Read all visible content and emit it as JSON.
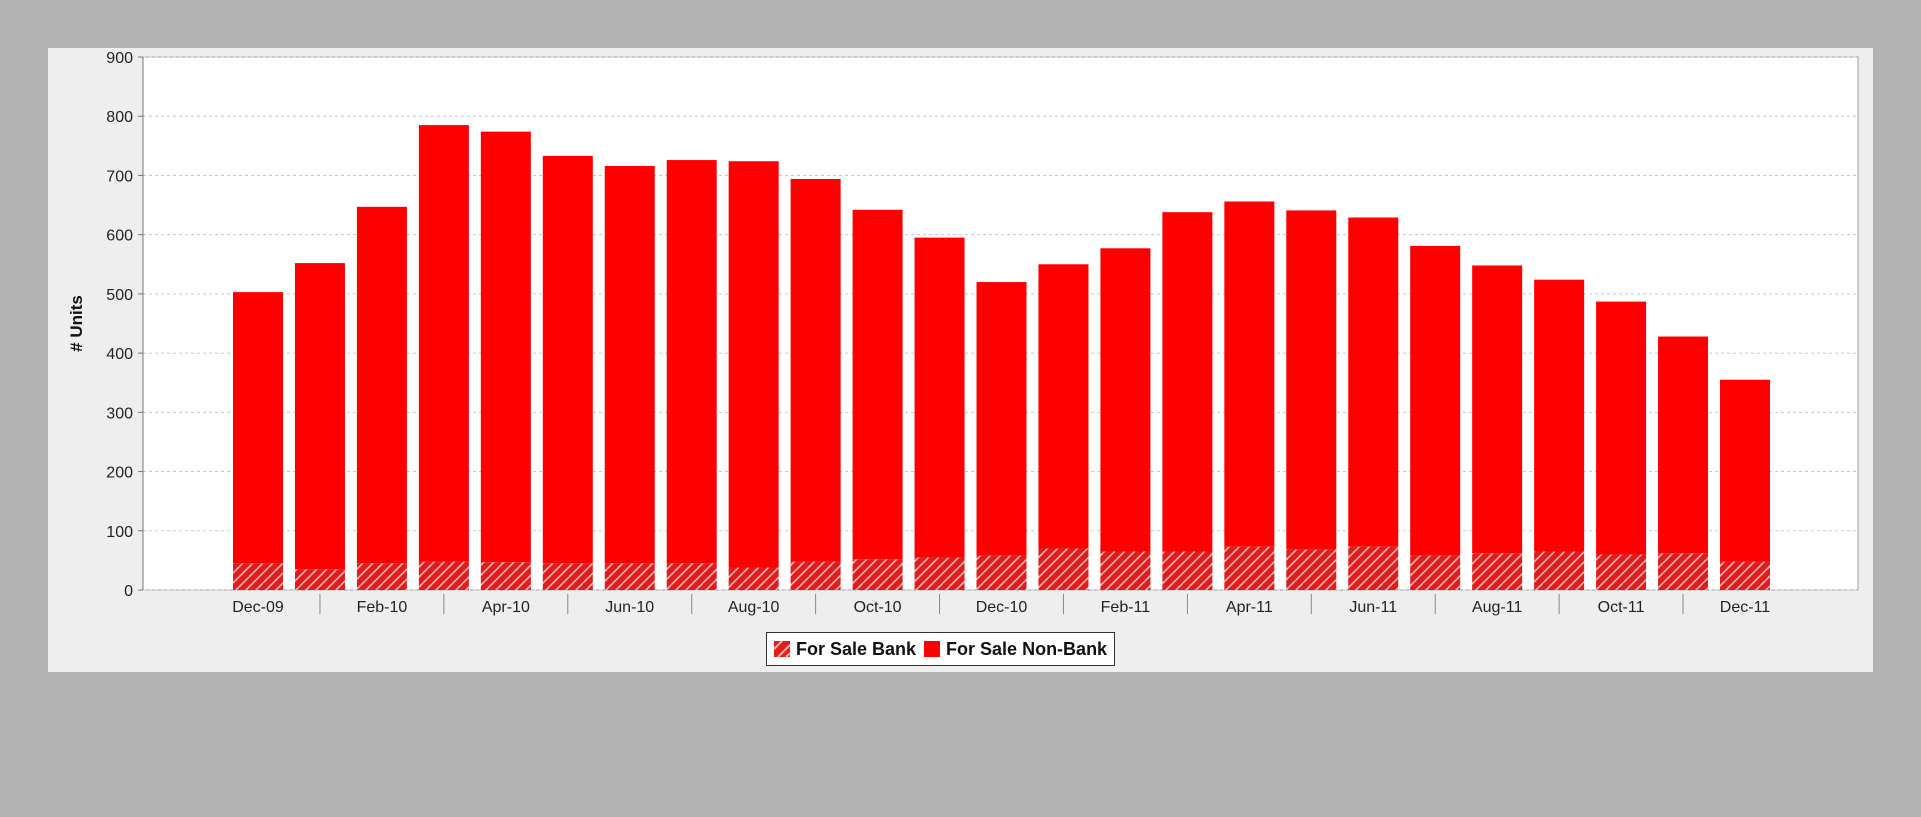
{
  "colors": {
    "page_bg": "#b2b2b2",
    "panel_bg": "#eeeeee",
    "plot_bg": "#ffffff",
    "bar": "#ff0000",
    "bank_fill": "#e31b1b",
    "hatch": "#ffb3b3"
  },
  "chart_data": {
    "type": "bar",
    "stacked": true,
    "x": [
      "Dec-09",
      "Jan-10",
      "Feb-10",
      "Mar-10",
      "Apr-10",
      "May-10",
      "Jun-10",
      "Jul-10",
      "Aug-10",
      "Sep-10",
      "Oct-10",
      "Nov-10",
      "Dec-10",
      "Jan-11",
      "Feb-11",
      "Mar-11",
      "Apr-11",
      "May-11",
      "Jun-11",
      "Jul-11",
      "Aug-11",
      "Sep-11",
      "Oct-11",
      "Nov-11",
      "Dec-11"
    ],
    "x_tick_labels": [
      "Dec-09",
      "Feb-10",
      "Apr-10",
      "Jun-10",
      "Aug-10",
      "Oct-10",
      "Dec-10",
      "Feb-11",
      "Apr-11",
      "Jun-11",
      "Aug-11",
      "Oct-11",
      "Dec-11"
    ],
    "series": [
      {
        "name": "For Sale Bank",
        "pattern": "hatched",
        "values": [
          45,
          35,
          45,
          48,
          47,
          45,
          45,
          45,
          38,
          48,
          52,
          55,
          58,
          70,
          65,
          65,
          73,
          68,
          73,
          58,
          62,
          65,
          60,
          62,
          48
        ]
      },
      {
        "name": "For Sale Non-Bank",
        "pattern": "solid",
        "values": [
          458,
          517,
          602,
          737,
          727,
          688,
          671,
          681,
          686,
          646,
          590,
          540,
          462,
          480,
          512,
          573,
          583,
          573,
          556,
          523,
          486,
          459,
          427,
          366,
          307
        ]
      }
    ],
    "ylabel": "# Units",
    "ylim": [
      0,
      900
    ],
    "yticks": [
      0,
      100,
      200,
      300,
      400,
      500,
      600,
      700,
      800,
      900
    ],
    "grid": true,
    "legend_position": "bottom-center"
  }
}
